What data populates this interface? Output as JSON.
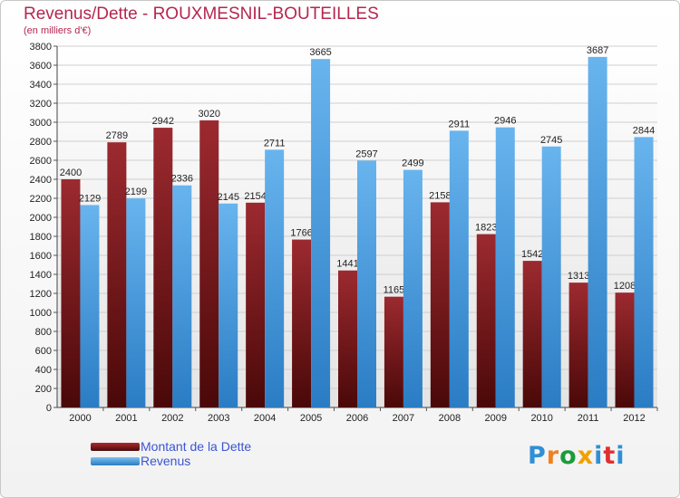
{
  "title": "Revenus/Dette - ROUXMESNIL-BOUTEILLES",
  "subtitle": "(en milliers d'€)",
  "logo": {
    "letters": [
      "P",
      "r",
      "o",
      "x",
      "i",
      "t",
      "i"
    ],
    "colors": [
      "#2f8fd6",
      "#f08020",
      "#1c9b3a",
      "#f0a000",
      "#2f8fd6",
      "#e03030",
      "#2f8fd6"
    ]
  },
  "chart_data": {
    "type": "bar",
    "title": "Revenus/Dette - ROUXMESNIL-BOUTEILLES",
    "ylabel": "(en milliers d'€)",
    "xlabel": "",
    "categories": [
      "2000",
      "2001",
      "2002",
      "2003",
      "2004",
      "2005",
      "2006",
      "2007",
      "2008",
      "2009",
      "2010",
      "2011",
      "2012"
    ],
    "series": [
      {
        "name": "Montant de la Dette",
        "color": "#7a1a1e",
        "values": [
          2400,
          2789,
          2942,
          3020,
          2154,
          1766,
          1441,
          1165,
          2158,
          1823,
          1542,
          1313,
          1208
        ],
        "labels": [
          "2400",
          "2789",
          "2942",
          "3020",
          "2154",
          "1766",
          "1441",
          "1165",
          "2158",
          "1823",
          "1542",
          "1313",
          "1208"
        ]
      },
      {
        "name": "Revenus",
        "color": "#3c98de",
        "values": [
          2129,
          2199,
          2336,
          2145,
          2711,
          3665,
          2597,
          2499,
          2911,
          2946,
          2745,
          3687,
          2844
        ],
        "labels": [
          "2129",
          "2199",
          "2336",
          "2145",
          "2711",
          "3665",
          "2597",
          "2499",
          "2911",
          "2946",
          "2745",
          "3687",
          "2844"
        ]
      }
    ],
    "ylim": [
      0,
      3800
    ],
    "yticks": [
      0,
      200,
      400,
      600,
      800,
      1000,
      1200,
      1400,
      1600,
      1800,
      2000,
      2200,
      2400,
      2600,
      2800,
      3000,
      3200,
      3400,
      3600,
      3800
    ],
    "grid": true,
    "legend": "bottom-left"
  }
}
